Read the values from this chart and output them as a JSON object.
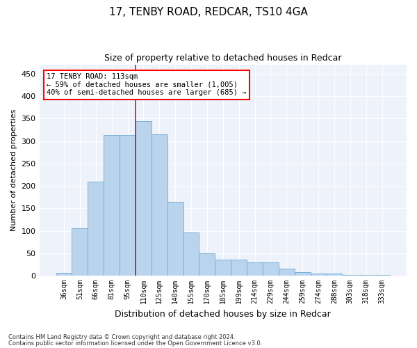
{
  "title1": "17, TENBY ROAD, REDCAR, TS10 4GA",
  "title2": "Size of property relative to detached houses in Redcar",
  "xlabel": "Distribution of detached houses by size in Redcar",
  "ylabel": "Number of detached properties",
  "categories": [
    "36sqm",
    "51sqm",
    "66sqm",
    "81sqm",
    "95sqm",
    "110sqm",
    "125sqm",
    "140sqm",
    "155sqm",
    "170sqm",
    "185sqm",
    "199sqm",
    "214sqm",
    "229sqm",
    "244sqm",
    "259sqm",
    "274sqm",
    "288sqm",
    "303sqm",
    "318sqm",
    "333sqm"
  ],
  "values": [
    6,
    106,
    210,
    313,
    313,
    345,
    315,
    165,
    97,
    50,
    35,
    35,
    29,
    29,
    15,
    8,
    5,
    5,
    2,
    1,
    1
  ],
  "bar_color": "#bad4ee",
  "bar_edge_color": "#6aaad4",
  "vline_x": 4.5,
  "vline_color": "red",
  "annotation_text": "17 TENBY ROAD: 113sqm\n← 59% of detached houses are smaller (1,005)\n40% of semi-detached houses are larger (685) →",
  "annotation_box_color": "red",
  "annotation_text_color": "black",
  "annotation_box_bg": "white",
  "footer1": "Contains HM Land Registry data © Crown copyright and database right 2024.",
  "footer2": "Contains public sector information licensed under the Open Government Licence v3.0.",
  "ylim": [
    0,
    470
  ],
  "yticks": [
    0,
    50,
    100,
    150,
    200,
    250,
    300,
    350,
    400,
    450
  ],
  "bg_color": "#eef2fb",
  "grid_color": "white",
  "title_fontsize": 11,
  "subtitle_fontsize": 9,
  "tick_fontsize": 7,
  "ylabel_fontsize": 8,
  "xlabel_fontsize": 9
}
